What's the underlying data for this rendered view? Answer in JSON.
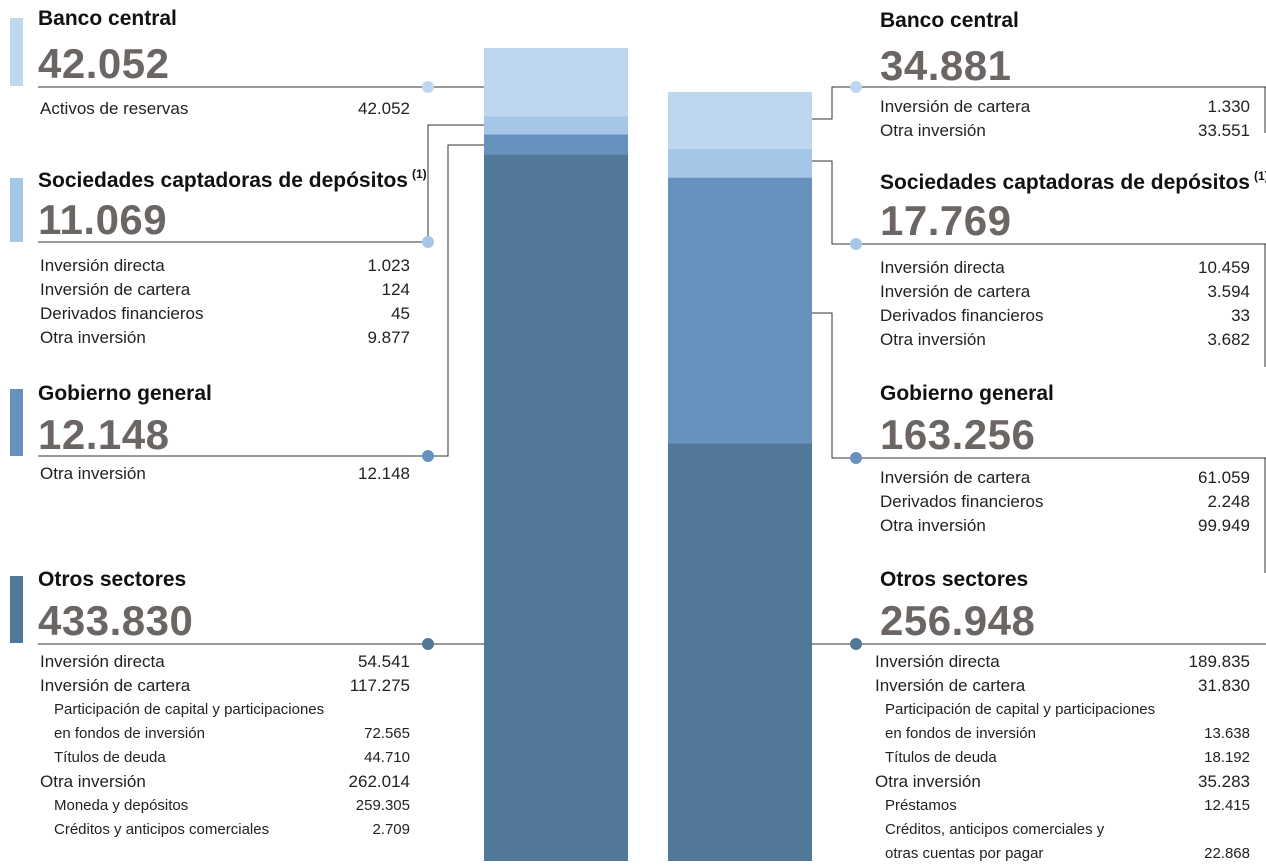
{
  "colors": {
    "banco_central": "#bdd7ee",
    "sociedades": "#a5c6e6",
    "gobierno": "#6792bd",
    "otros": "#527899",
    "connector": "#333333"
  },
  "chart_data": {
    "type": "bar",
    "stacked": true,
    "categories": [
      "left",
      "right"
    ],
    "series": [
      {
        "name": "Banco central",
        "values": [
          42052,
          34881
        ]
      },
      {
        "name": "Sociedades captadoras de depósitos",
        "values": [
          11069,
          17769
        ]
      },
      {
        "name": "Gobierno general",
        "values": [
          12148,
          163256
        ]
      },
      {
        "name": "Otros sectores",
        "values": [
          433830,
          256948
        ]
      }
    ]
  },
  "left": {
    "banco": {
      "title": "Banco central",
      "total": "42.052",
      "items": [
        {
          "label": "Activos de reservas",
          "value": "42.052"
        }
      ]
    },
    "sociedades": {
      "title": "Sociedades captadoras de depósitos",
      "note": "(1)",
      "total": "11.069",
      "items": [
        {
          "label": "Inversión directa",
          "value": "1.023"
        },
        {
          "label": "Inversión de cartera",
          "value": "124"
        },
        {
          "label": "Derivados financieros",
          "value": "45"
        },
        {
          "label": "Otra inversión",
          "value": "9.877"
        }
      ]
    },
    "gobierno": {
      "title": "Gobierno general",
      "total": "12.148",
      "items": [
        {
          "label": "Otra inversión",
          "value": "12.148"
        }
      ]
    },
    "otros": {
      "title": "Otros sectores",
      "total": "433.830",
      "items": [
        {
          "label": "Inversión directa",
          "value": "54.541"
        },
        {
          "label": "Inversión de cartera",
          "value": "117.275"
        },
        {
          "label": "Participación de capital y participaciones",
          "value": ""
        },
        {
          "label": "en fondos de inversión",
          "value": "72.565"
        },
        {
          "label": "Títulos de deuda",
          "value": "44.710"
        },
        {
          "label": "Otra inversión",
          "value": "262.014"
        },
        {
          "label": "Moneda y depósitos",
          "value": "259.305"
        },
        {
          "label": "Créditos y anticipos comerciales",
          "value": "2.709"
        }
      ]
    }
  },
  "right": {
    "banco": {
      "title": "Banco central",
      "total": "34.881",
      "items": [
        {
          "label": "Inversión de cartera",
          "value": "1.330"
        },
        {
          "label": "Otra inversión",
          "value": "33.551"
        }
      ]
    },
    "sociedades": {
      "title": "Sociedades captadoras de depósitos",
      "note": "(1)",
      "total": "17.769",
      "items": [
        {
          "label": "Inversión directa",
          "value": "10.459"
        },
        {
          "label": "Inversión de cartera",
          "value": "3.594"
        },
        {
          "label": "Derivados financieros",
          "value": "33"
        },
        {
          "label": "Otra inversión",
          "value": "3.682"
        }
      ]
    },
    "gobierno": {
      "title": "Gobierno general",
      "total": "163.256",
      "items": [
        {
          "label": "Inversión de cartera",
          "value": "61.059"
        },
        {
          "label": "Derivados financieros",
          "value": "2.248"
        },
        {
          "label": "Otra inversión",
          "value": "99.949"
        }
      ]
    },
    "otros": {
      "title": "Otros sectores",
      "total": "256.948",
      "items": [
        {
          "label": "Inversión directa",
          "value": "189.835"
        },
        {
          "label": "Inversión de cartera",
          "value": "31.830"
        },
        {
          "label": "Participación de capital y participaciones",
          "value": ""
        },
        {
          "label": "en fondos de inversión",
          "value": "13.638"
        },
        {
          "label": "Títulos de deuda",
          "value": "18.192"
        },
        {
          "label": "Otra inversión",
          "value": "35.283"
        },
        {
          "label": "Préstamos",
          "value": "12.415"
        },
        {
          "label": "Créditos, anticipos comerciales y",
          "value": ""
        },
        {
          "label": "otras cuentas por pagar",
          "value": "22.868"
        }
      ]
    }
  }
}
